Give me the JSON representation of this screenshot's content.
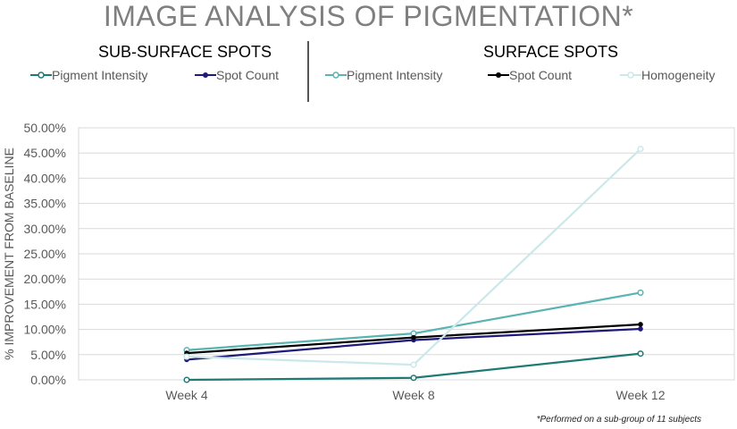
{
  "chart_data": {
    "type": "line",
    "title": "IMAGE ANALYSIS OF PIGMENTATION*",
    "ylabel": "% IMPROVEMENT FROM BASELINE",
    "xlabel": "",
    "categories": [
      "Week 4",
      "Week 8",
      "Week 12"
    ],
    "ylim": [
      0,
      50
    ],
    "yticks": [
      "0.00%",
      "5.00%",
      "10.00%",
      "15.00%",
      "20.00%",
      "25.00%",
      "30.00%",
      "35.00%",
      "40.00%",
      "45.00%",
      "50.00%"
    ],
    "groups": [
      {
        "label": "SUB-SURFACE SPOTS"
      },
      {
        "label": "SURFACE SPOTS"
      }
    ],
    "series": [
      {
        "name": "Pigment Intensity",
        "group": 0,
        "color": "#1f7a75",
        "marker": "open",
        "values": [
          0.0,
          0.4,
          5.2
        ]
      },
      {
        "name": "Spot Count",
        "group": 0,
        "color": "#1f1a7a",
        "marker": "filled",
        "values": [
          4.0,
          7.9,
          10.1
        ]
      },
      {
        "name": "Pigment Intensity",
        "group": 1,
        "color": "#5bb4b4",
        "marker": "open",
        "values": [
          5.9,
          9.2,
          17.3
        ]
      },
      {
        "name": "Spot Count",
        "group": 1,
        "color": "#000000",
        "marker": "filled",
        "values": [
          5.3,
          8.4,
          11.0
        ]
      },
      {
        "name": "Homogeneity",
        "group": 1,
        "color": "#cbe8ea",
        "marker": "open",
        "values": [
          4.6,
          3.0,
          45.8
        ]
      }
    ],
    "grid": true,
    "legend": "top"
  },
  "footnote": "*Performed on a sub-group of 11 subjects"
}
